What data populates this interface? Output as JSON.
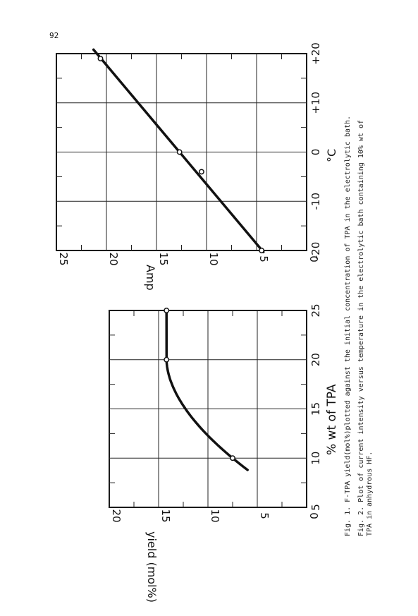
{
  "page": {
    "number": "92"
  },
  "chart_data": [
    {
      "type": "line",
      "x": [
        10,
        20,
        25
      ],
      "y": [
        7.5,
        14.2,
        14.2
      ],
      "xlabel": "% wt of TPA",
      "ylabel": "yield (mol%)",
      "xlim": [
        5,
        25
      ],
      "ylim": [
        0,
        20
      ],
      "x_ticks": [
        "5",
        "10",
        "15",
        "20",
        "25"
      ],
      "y_ticks": [
        "0",
        "5",
        "10",
        "15",
        "20"
      ],
      "grid": true,
      "caption": "Fig. 1. F-TPA yield(mol%)plotted against the initial concentration of TPA in the electrolytic bath."
    },
    {
      "type": "line",
      "x": [
        -20,
        -4,
        0,
        19
      ],
      "y": [
        4.5,
        10.5,
        12.7,
        20.6
      ],
      "xlabel": "°C",
      "ylabel": "Amp",
      "xlim": [
        -20,
        20
      ],
      "ylim": [
        0,
        25
      ],
      "x_ticks": [
        "-20",
        "-10",
        "0",
        "+10",
        "+20"
      ],
      "y_ticks": [
        "0",
        "5",
        "10",
        "15",
        "20",
        "25"
      ],
      "grid": true,
      "caption_lines": [
        "Fig. 2. Plot of current intensity versus temperature in the electrolytic bath containing 10% wt of",
        "TPA in anhydrous HF."
      ]
    }
  ]
}
